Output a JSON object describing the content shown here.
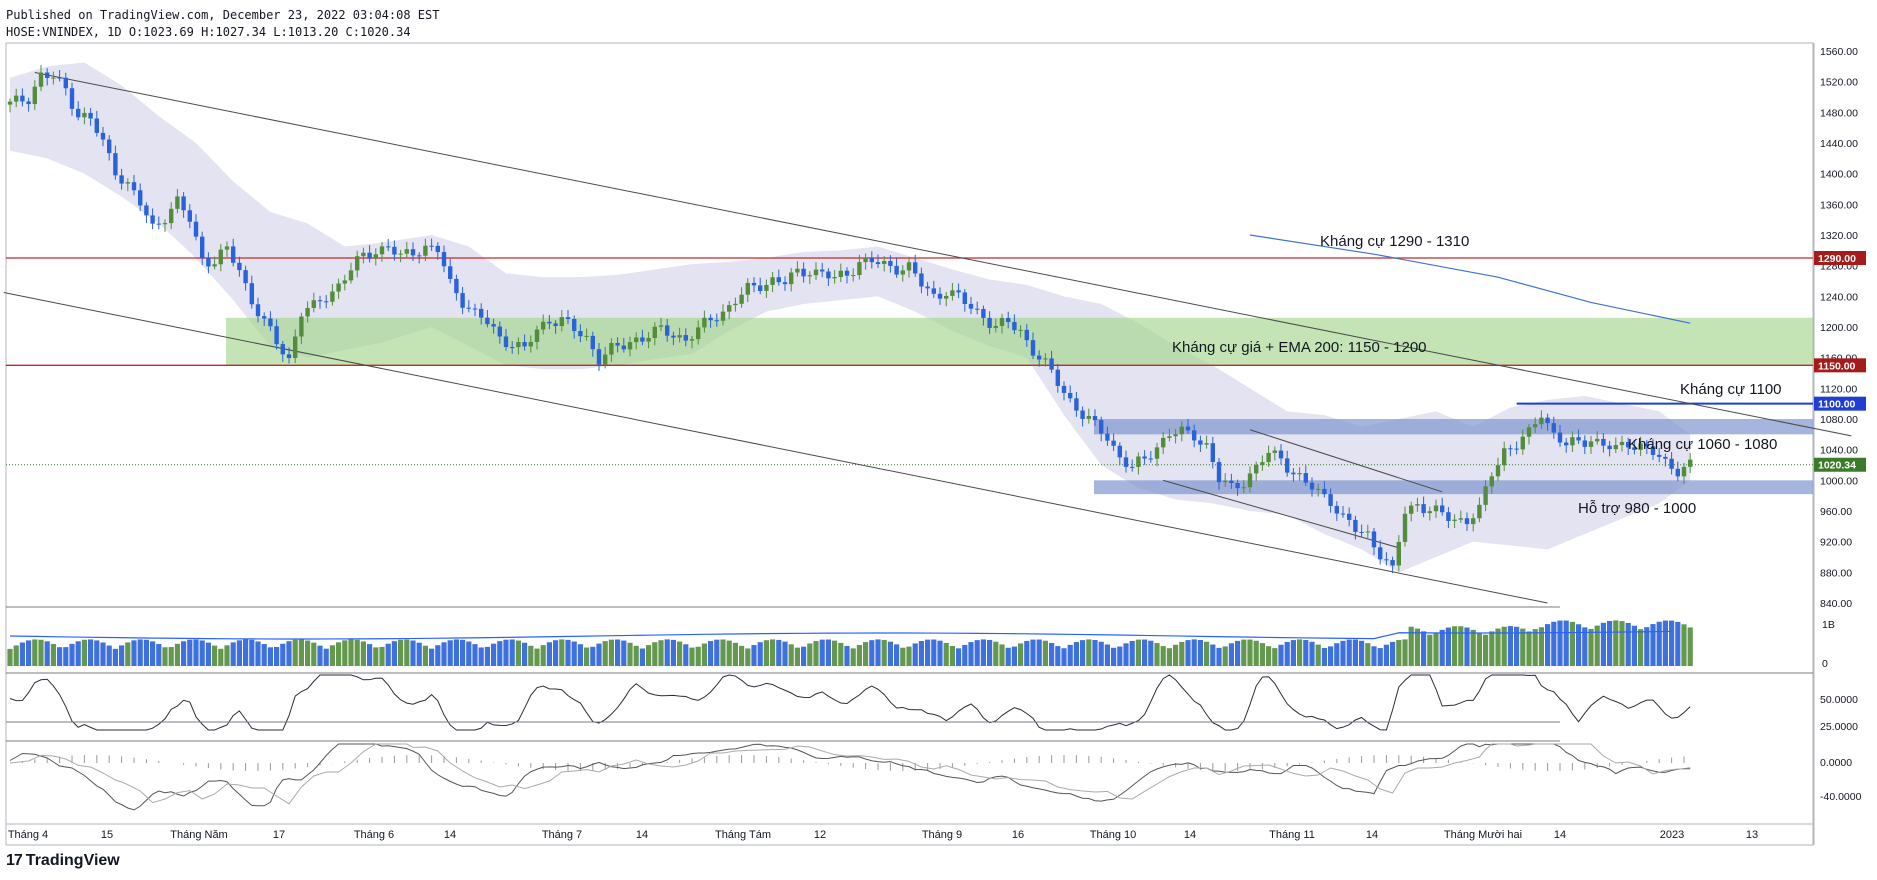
{
  "header": {
    "published": "Published on TradingView.com, December 23, 2022 03:04:08 EST",
    "ohlc": "HOSE:VNINDEX, 1D O:1023.69 H:1027.34 L:1013.20 C:1020.34"
  },
  "brand": {
    "name": "TradingView",
    "logo_icon": "tradingview-logo-icon"
  },
  "colors": {
    "up": "#538d3b",
    "down": "#2962d9",
    "resistance_line": "#c62828",
    "channel_band": "#d9daec",
    "green_zone": "#a5d58e",
    "blue_zone": "#7f95cf",
    "ema200": "#3c72d6"
  },
  "chart_data": {
    "type": "candlestick",
    "symbol": "HOSE:VNINDEX",
    "interval": "1D",
    "ylim": [
      840,
      1560
    ],
    "y_ticks": [
      "1560.00",
      "1520.00",
      "1480.00",
      "1440.00",
      "1400.00",
      "1360.00",
      "1320.00",
      "1280.00",
      "1240.00",
      "1200.00",
      "1160.00",
      "1120.00",
      "1080.00",
      "1040.00",
      "1000.00",
      "960.00",
      "920.00",
      "880.00",
      "840.00"
    ],
    "x_ticks": [
      "Tháng 4",
      "15",
      "Tháng Năm",
      "17",
      "Tháng 6",
      "14",
      "Tháng 7",
      "14",
      "Tháng Tám",
      "12",
      "Tháng 9",
      "16",
      "Tháng 10",
      "14",
      "Tháng 11",
      "14",
      "Tháng Mười hai",
      "14",
      "2023",
      "13"
    ],
    "price_badges": [
      {
        "label": "1290.00",
        "value": 1290,
        "color": "#a51b1b"
      },
      {
        "label": "1150.00",
        "value": 1150,
        "color": "#a51b1b"
      },
      {
        "label": "1100.00",
        "value": 1100,
        "color": "#1e3fd1"
      },
      {
        "label": "1020.34",
        "value": 1020.34,
        "color": "#3b7a28"
      }
    ],
    "horizontal_lines": [
      {
        "value": 1290,
        "color": "#c62828"
      },
      {
        "value": 1150,
        "color": "#c62828"
      }
    ],
    "zones": [
      {
        "label": "Kháng cự giá + EMA 200: 1150 - 1200",
        "low": 1150,
        "high": 1212,
        "color": "#a5d58e"
      },
      {
        "label": "Kháng cự 1060 - 1080",
        "low": 1060,
        "high": 1080,
        "color": "#7f95cf"
      },
      {
        "label": "Hỗ trợ 980 - 1000",
        "low": 982,
        "high": 1000,
        "color": "#7f95cf"
      }
    ],
    "annotations": [
      {
        "text": "Kháng cự 1290 - 1310"
      },
      {
        "text": "Kháng cự giá + EMA 200: 1150 - 1200"
      },
      {
        "text": "Kháng cự 1100"
      },
      {
        "text": "Kháng cự 1060 - 1080"
      },
      {
        "text": "Hỗ trợ 980 - 1000"
      }
    ],
    "close_path": [
      [
        0,
        1490
      ],
      [
        3,
        1500
      ],
      [
        5,
        1528
      ],
      [
        7,
        1525
      ],
      [
        9,
        1510
      ],
      [
        11,
        1478
      ],
      [
        13,
        1470
      ],
      [
        15,
        1440
      ],
      [
        17,
        1405
      ],
      [
        19,
        1385
      ],
      [
        21,
        1360
      ],
      [
        23,
        1330
      ],
      [
        25,
        1345
      ],
      [
        27,
        1362
      ],
      [
        29,
        1340
      ],
      [
        31,
        1290
      ],
      [
        33,
        1285
      ],
      [
        35,
        1300
      ],
      [
        37,
        1275
      ],
      [
        39,
        1235
      ],
      [
        41,
        1205
      ],
      [
        43,
        1180
      ],
      [
        45,
        1158
      ],
      [
        47,
        1220
      ],
      [
        49,
        1225
      ],
      [
        51,
        1240
      ],
      [
        53,
        1255
      ],
      [
        55,
        1275
      ],
      [
        57,
        1292
      ],
      [
        59,
        1300
      ],
      [
        61,
        1305
      ],
      [
        63,
        1290
      ],
      [
        65,
        1298
      ],
      [
        67,
        1305
      ],
      [
        69,
        1300
      ],
      [
        71,
        1255
      ],
      [
        73,
        1235
      ],
      [
        75,
        1218
      ],
      [
        77,
        1205
      ],
      [
        79,
        1185
      ],
      [
        81,
        1180
      ],
      [
        83,
        1170
      ],
      [
        85,
        1195
      ],
      [
        87,
        1210
      ],
      [
        89,
        1210
      ],
      [
        91,
        1195
      ],
      [
        93,
        1185
      ],
      [
        95,
        1160
      ],
      [
        97,
        1170
      ],
      [
        99,
        1175
      ],
      [
        101,
        1185
      ],
      [
        103,
        1190
      ],
      [
        105,
        1195
      ],
      [
        107,
        1190
      ],
      [
        109,
        1185
      ],
      [
        111,
        1195
      ],
      [
        113,
        1210
      ],
      [
        115,
        1220
      ],
      [
        117,
        1235
      ],
      [
        119,
        1248
      ],
      [
        121,
        1255
      ],
      [
        123,
        1262
      ],
      [
        125,
        1258
      ],
      [
        127,
        1270
      ],
      [
        129,
        1275
      ],
      [
        131,
        1270
      ],
      [
        133,
        1262
      ],
      [
        135,
        1270
      ],
      [
        137,
        1285
      ],
      [
        139,
        1285
      ],
      [
        141,
        1280
      ],
      [
        143,
        1278
      ],
      [
        145,
        1278
      ],
      [
        147,
        1255
      ],
      [
        149,
        1240
      ],
      [
        151,
        1248
      ],
      [
        153,
        1238
      ],
      [
        155,
        1225
      ],
      [
        157,
        1215
      ],
      [
        159,
        1200
      ],
      [
        161,
        1205
      ],
      [
        163,
        1195
      ],
      [
        165,
        1170
      ],
      [
        167,
        1150
      ],
      [
        169,
        1128
      ],
      [
        171,
        1105
      ],
      [
        173,
        1085
      ],
      [
        175,
        1070
      ],
      [
        177,
        1058
      ],
      [
        179,
        1030
      ],
      [
        181,
        1015
      ],
      [
        183,
        1028
      ],
      [
        185,
        1045
      ],
      [
        187,
        1060
      ],
      [
        189,
        1062
      ],
      [
        191,
        1060
      ],
      [
        193,
        1045
      ],
      [
        195,
        1000
      ],
      [
        197,
        990
      ],
      [
        199,
        1000
      ],
      [
        201,
        1015
      ],
      [
        203,
        1035
      ],
      [
        205,
        1030
      ],
      [
        207,
        1010
      ],
      [
        209,
        995
      ],
      [
        211,
        985
      ],
      [
        213,
        975
      ],
      [
        215,
        950
      ],
      [
        217,
        935
      ],
      [
        219,
        930
      ],
      [
        221,
        905
      ],
      [
        223,
        880
      ],
      [
        225,
        960
      ],
      [
        227,
        970
      ],
      [
        229,
        960
      ],
      [
        231,
        955
      ],
      [
        233,
        950
      ],
      [
        235,
        948
      ],
      [
        237,
        960
      ],
      [
        239,
        1010
      ],
      [
        241,
        1040
      ],
      [
        243,
        1045
      ],
      [
        245,
        1060
      ],
      [
        247,
        1090
      ],
      [
        249,
        1060
      ],
      [
        251,
        1045
      ],
      [
        253,
        1050
      ],
      [
        255,
        1055
      ],
      [
        257,
        1045
      ],
      [
        259,
        1040
      ],
      [
        261,
        1050
      ],
      [
        263,
        1045
      ],
      [
        265,
        1035
      ],
      [
        267,
        1022
      ],
      [
        269,
        1015
      ],
      [
        271,
        1020
      ]
    ],
    "bollinger": {
      "upper": [
        [
          0,
          1525
        ],
        [
          6,
          1540
        ],
        [
          12,
          1545
        ],
        [
          18,
          1515
        ],
        [
          24,
          1475
        ],
        [
          30,
          1440
        ],
        [
          36,
          1390
        ],
        [
          42,
          1350
        ],
        [
          48,
          1335
        ],
        [
          54,
          1305
        ],
        [
          60,
          1310
        ],
        [
          68,
          1320
        ],
        [
          74,
          1305
        ],
        [
          80,
          1270
        ],
        [
          86,
          1265
        ],
        [
          92,
          1265
        ],
        [
          98,
          1268
        ],
        [
          104,
          1275
        ],
        [
          110,
          1282
        ],
        [
          116,
          1285
        ],
        [
          122,
          1290
        ],
        [
          128,
          1298
        ],
        [
          134,
          1300
        ],
        [
          140,
          1305
        ],
        [
          146,
          1290
        ],
        [
          152,
          1275
        ],
        [
          158,
          1262
        ],
        [
          164,
          1255
        ],
        [
          170,
          1240
        ],
        [
          176,
          1230
        ],
        [
          182,
          1205
        ],
        [
          188,
          1175
        ],
        [
          194,
          1150
        ],
        [
          200,
          1120
        ],
        [
          206,
          1090
        ],
        [
          212,
          1085
        ],
        [
          218,
          1070
        ],
        [
          224,
          1080
        ],
        [
          230,
          1090
        ],
        [
          236,
          1070
        ],
        [
          242,
          1095
        ],
        [
          248,
          1105
        ],
        [
          254,
          1110
        ],
        [
          260,
          1100
        ],
        [
          266,
          1090
        ],
        [
          271,
          1060
        ]
      ],
      "lower": [
        [
          0,
          1430
        ],
        [
          6,
          1420
        ],
        [
          12,
          1400
        ],
        [
          18,
          1370
        ],
        [
          24,
          1335
        ],
        [
          30,
          1290
        ],
        [
          36,
          1235
        ],
        [
          42,
          1175
        ],
        [
          48,
          1160
        ],
        [
          54,
          1170
        ],
        [
          60,
          1180
        ],
        [
          68,
          1200
        ],
        [
          74,
          1175
        ],
        [
          80,
          1150
        ],
        [
          86,
          1145
        ],
        [
          92,
          1145
        ],
        [
          98,
          1150
        ],
        [
          104,
          1158
        ],
        [
          110,
          1165
        ],
        [
          116,
          1195
        ],
        [
          122,
          1220
        ],
        [
          128,
          1230
        ],
        [
          134,
          1235
        ],
        [
          140,
          1240
        ],
        [
          146,
          1220
        ],
        [
          152,
          1195
        ],
        [
          158,
          1175
        ],
        [
          164,
          1160
        ],
        [
          170,
          1085
        ],
        [
          176,
          1020
        ],
        [
          182,
          990
        ],
        [
          188,
          975
        ],
        [
          194,
          970
        ],
        [
          200,
          960
        ],
        [
          206,
          955
        ],
        [
          212,
          930
        ],
        [
          218,
          910
        ],
        [
          224,
          880
        ],
        [
          230,
          900
        ],
        [
          236,
          920
        ],
        [
          242,
          915
        ],
        [
          248,
          910
        ],
        [
          254,
          930
        ],
        [
          260,
          950
        ],
        [
          266,
          970
        ],
        [
          271,
          1000
        ]
      ]
    },
    "ema200": [
      [
        200,
        1320
      ],
      [
        220,
        1295
      ],
      [
        240,
        1265
      ],
      [
        255,
        1232
      ],
      [
        271,
        1205
      ]
    ],
    "channel_lines": [
      {
        "from": [
          4,
          1532
        ],
        "to": [
          297,
          1058
        ]
      },
      {
        "from": [
          -1,
          1245
        ],
        "to": [
          248,
          840
        ]
      },
      {
        "from": [
          200,
          1066
        ],
        "to": [
          231,
          985
        ]
      },
      {
        "from": [
          186,
          1000
        ],
        "to": [
          224,
          912
        ]
      }
    ],
    "resistance_1100": {
      "from": [
        243,
        1100
      ],
      "to": [
        300,
        1100
      ]
    },
    "volume": {
      "label": "1B",
      "zero_label": "0",
      "count": 272
    },
    "rsi": {
      "labels": [
        "50.0000",
        "25.0000"
      ]
    },
    "macd": {
      "labels": [
        "0.0000",
        "-40.0000"
      ]
    }
  }
}
